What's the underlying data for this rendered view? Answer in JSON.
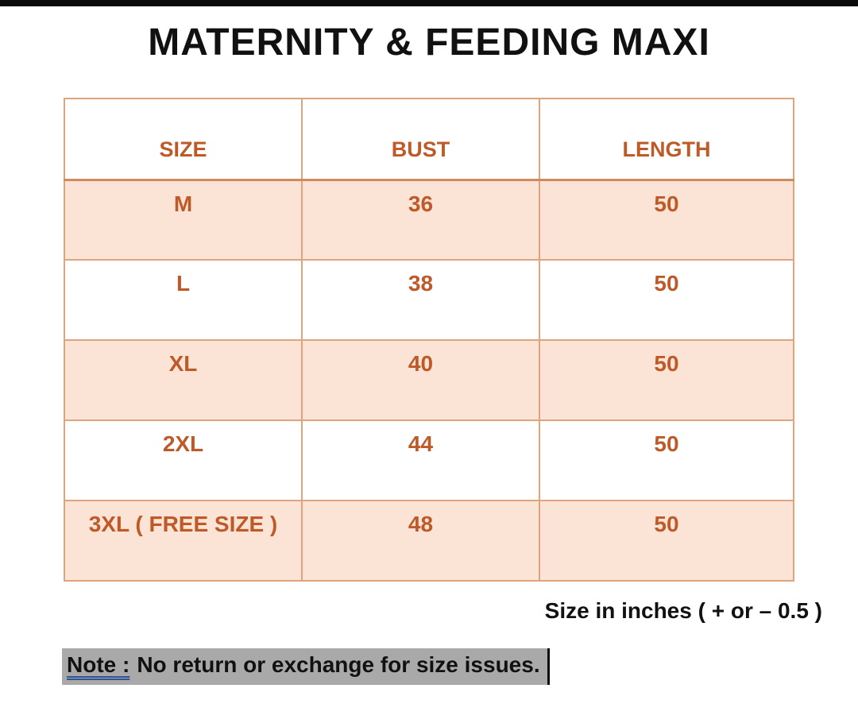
{
  "title": "MATERNITY & FEEDING MAXI",
  "table": {
    "headers": {
      "size": "SIZE",
      "bust": "BUST",
      "length": "LENGTH"
    },
    "rows": [
      {
        "size": "M",
        "bust": "36",
        "length": "50"
      },
      {
        "size": "L",
        "bust": "38",
        "length": "50"
      },
      {
        "size": "XL",
        "bust": "40",
        "length": "50"
      },
      {
        "size": "2XL",
        "bust": "44",
        "length": "50"
      },
      {
        "size": "3XL ( FREE SIZE )",
        "bust": "48",
        "length": "50"
      }
    ]
  },
  "footnote": "Size in inches ( + or  – 0.5 )",
  "note": {
    "label": "Note :",
    "text": "No return or exchange for size issues."
  },
  "colors": {
    "accent_orange": "#BE5A28",
    "row_peach": "#FBE3D5",
    "table_border": "#DCA57E",
    "note_highlight": "#A9A9A9",
    "note_underline_blue": "#2F5496",
    "title_black": "#111111"
  }
}
